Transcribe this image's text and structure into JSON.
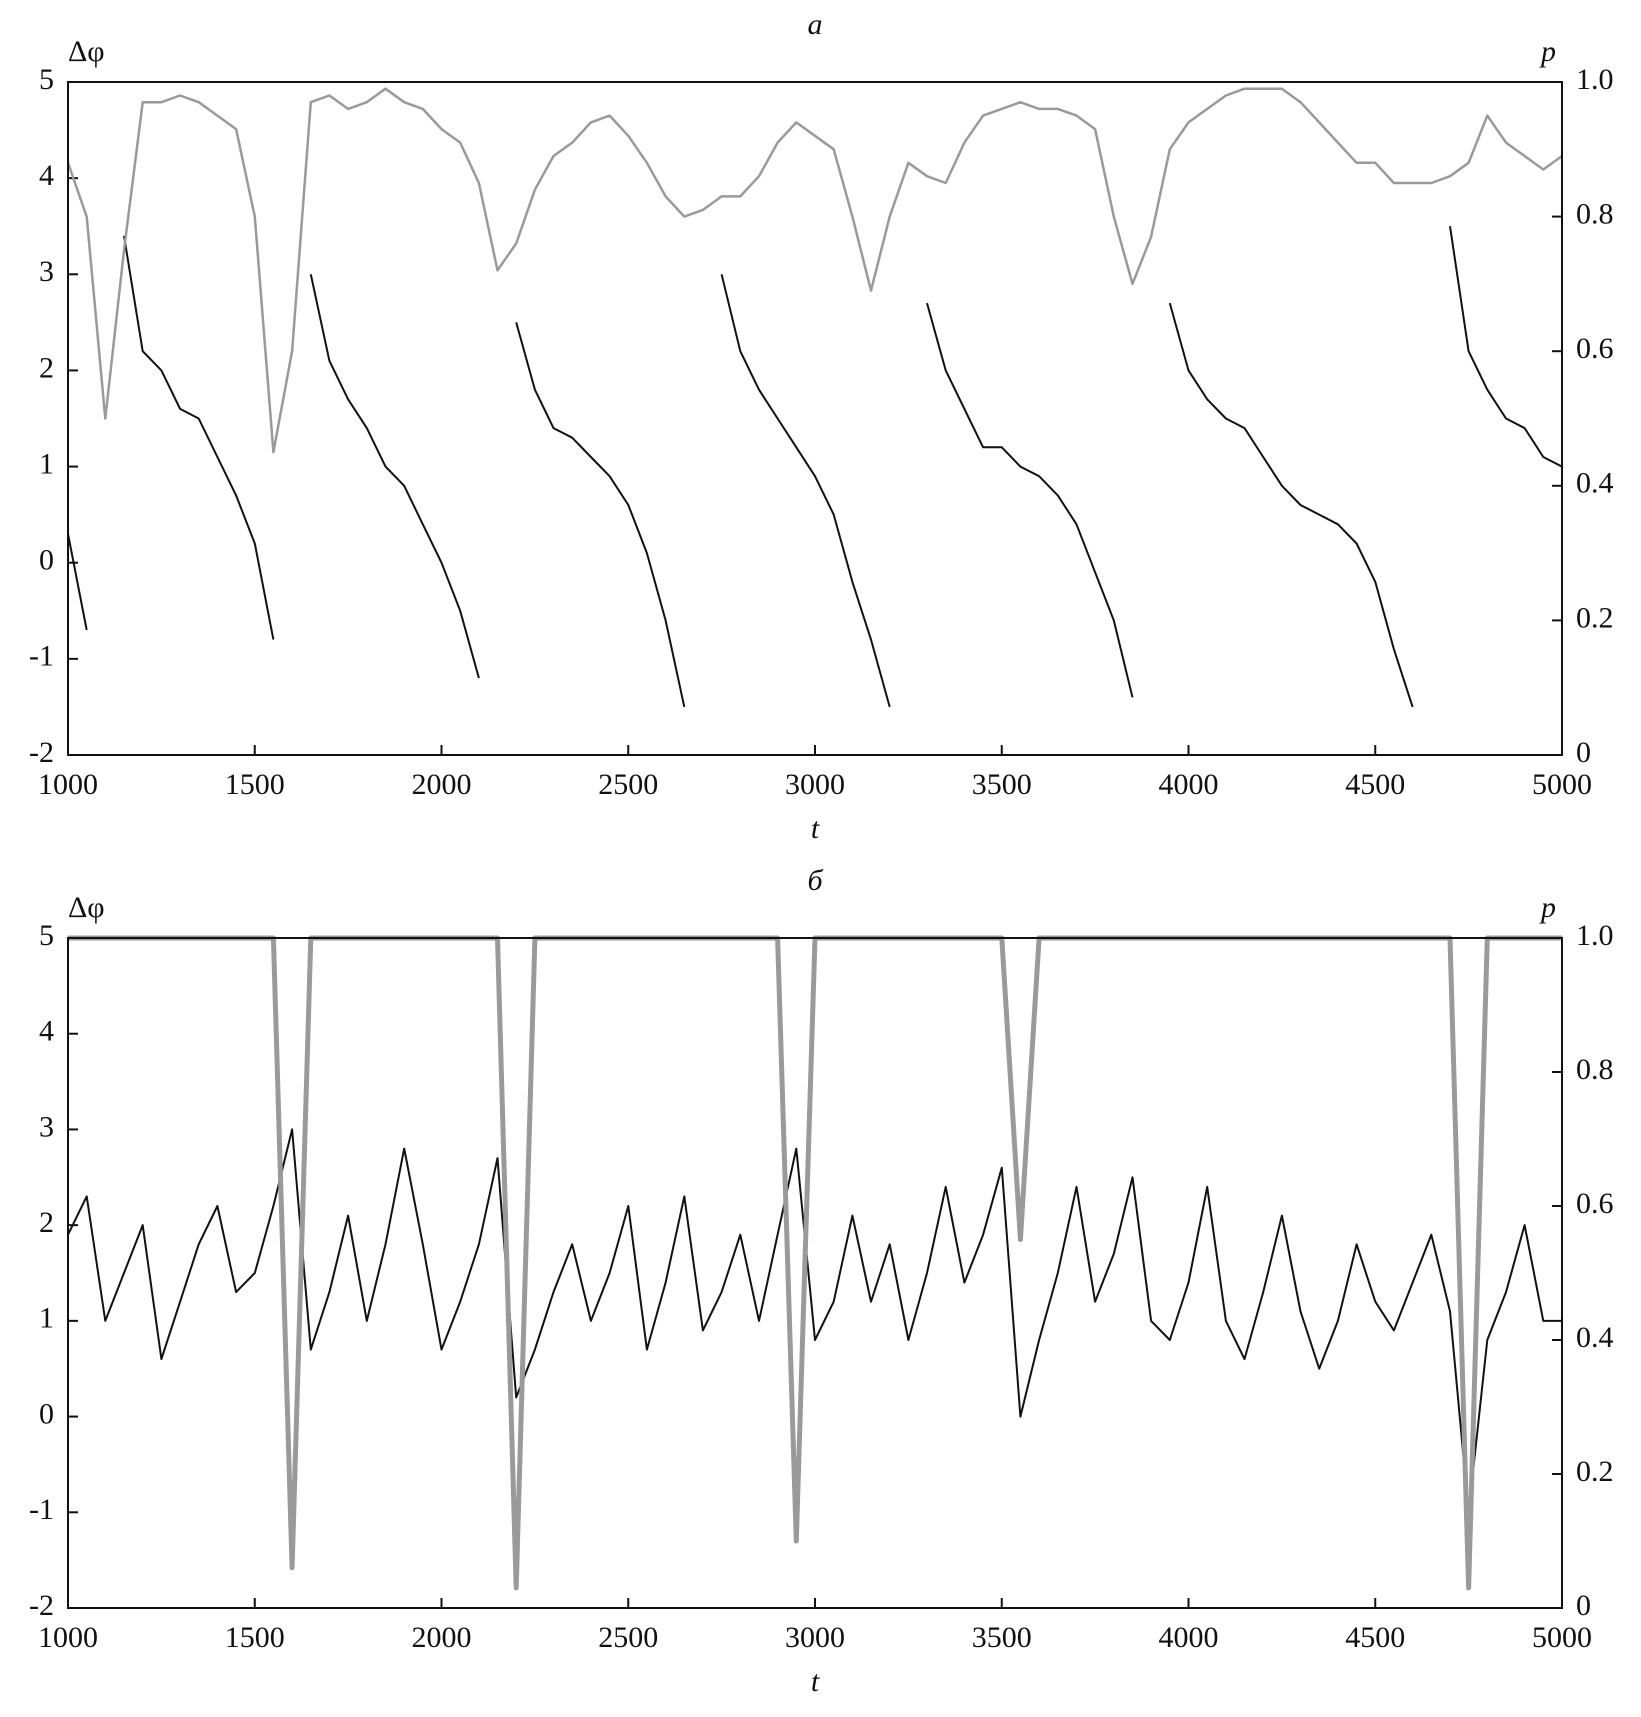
{
  "chart_data": [
    {
      "type": "line",
      "title": "a",
      "xlabel": "t",
      "ylabel": "Δφ",
      "y2label": "p",
      "xlim": [
        1000,
        5000
      ],
      "xticks": [
        1000,
        1500,
        2000,
        2500,
        3000,
        3500,
        4000,
        4500,
        5000
      ],
      "ylim": [
        -2,
        5
      ],
      "yticks": [
        -2,
        -1,
        0,
        1,
        2,
        3,
        4,
        5
      ],
      "y2lim": [
        0,
        1
      ],
      "y2ticks": [
        0,
        0.2,
        0.4,
        0.6,
        0.8,
        {
          "value": 1,
          "label": "1.0"
        }
      ],
      "x": [
        1000,
        1050,
        1100,
        1150,
        1200,
        1250,
        1300,
        1350,
        1400,
        1450,
        1500,
        1550,
        1600,
        1650,
        1700,
        1750,
        1800,
        1850,
        1900,
        1950,
        2000,
        2050,
        2100,
        2150,
        2200,
        2250,
        2300,
        2350,
        2400,
        2450,
        2500,
        2550,
        2600,
        2650,
        2700,
        2750,
        2800,
        2850,
        2900,
        2950,
        3000,
        3050,
        3100,
        3150,
        3200,
        3250,
        3300,
        3350,
        3400,
        3450,
        3500,
        3550,
        3600,
        3650,
        3700,
        3750,
        3800,
        3850,
        3900,
        3950,
        4000,
        4050,
        4100,
        4150,
        4200,
        4250,
        4300,
        4350,
        4400,
        4450,
        4500,
        4550,
        4600,
        4650,
        4700,
        4750,
        4800,
        4850,
        4900,
        4950,
        5000
      ],
      "series": [
        {
          "name": "Δφ",
          "color": "#111111",
          "values": [
            0.3,
            -0.7,
            null,
            3.4,
            2.2,
            2.0,
            1.6,
            1.5,
            1.1,
            0.7,
            0.2,
            -0.8,
            null,
            3.0,
            2.1,
            1.7,
            1.4,
            1.0,
            0.8,
            0.4,
            0.0,
            -0.5,
            -1.2,
            null,
            2.5,
            1.8,
            1.4,
            1.3,
            1.1,
            0.9,
            0.6,
            0.1,
            -0.6,
            -1.5,
            null,
            3.0,
            2.2,
            1.8,
            1.5,
            1.2,
            0.9,
            0.5,
            -0.2,
            -0.8,
            -1.5,
            null,
            2.7,
            2.0,
            1.6,
            1.2,
            1.2,
            1.0,
            0.9,
            0.7,
            0.4,
            -0.1,
            -0.6,
            -1.4,
            null,
            2.7,
            2.0,
            1.7,
            1.5,
            1.4,
            1.1,
            0.8,
            0.6,
            0.5,
            0.4,
            0.2,
            -0.2,
            -0.9,
            -1.5,
            null,
            3.5,
            2.2,
            1.8,
            1.5,
            1.4,
            1.1,
            1.0
          ]
        },
        {
          "name": "p",
          "color": "#9a9a9a",
          "axis": "y2",
          "values": [
            0.88,
            0.8,
            0.5,
            0.75,
            0.97,
            0.97,
            0.98,
            0.97,
            0.95,
            0.93,
            0.8,
            0.45,
            0.6,
            0.97,
            0.98,
            0.96,
            0.97,
            0.99,
            0.97,
            0.96,
            0.93,
            0.91,
            0.85,
            0.72,
            0.76,
            0.84,
            0.89,
            0.91,
            0.94,
            0.95,
            0.92,
            0.88,
            0.83,
            0.8,
            0.81,
            0.83,
            0.83,
            0.86,
            0.91,
            0.94,
            0.92,
            0.9,
            0.8,
            0.69,
            0.8,
            0.88,
            0.86,
            0.85,
            0.91,
            0.95,
            0.96,
            0.97,
            0.96,
            0.96,
            0.95,
            0.93,
            0.8,
            0.7,
            0.77,
            0.9,
            0.94,
            0.96,
            0.98,
            0.99,
            0.99,
            0.99,
            0.97,
            0.94,
            0.91,
            0.88,
            0.88,
            0.85,
            0.85,
            0.85,
            0.86,
            0.88,
            0.95,
            0.91,
            0.89,
            0.87,
            0.89
          ]
        }
      ]
    },
    {
      "type": "line",
      "title": "б",
      "xlabel": "t",
      "ylabel": "Δφ",
      "y2label": "p",
      "xlim": [
        1000,
        5000
      ],
      "xticks": [
        1000,
        1500,
        2000,
        2500,
        3000,
        3500,
        4000,
        4500,
        5000
      ],
      "ylim": [
        -2,
        5
      ],
      "yticks": [
        -2,
        -1,
        0,
        1,
        2,
        3,
        4,
        5
      ],
      "y2lim": [
        0,
        1
      ],
      "y2ticks": [
        0,
        0.2,
        0.4,
        0.6,
        0.8,
        {
          "value": 1,
          "label": "1.0"
        }
      ],
      "x": [
        1000,
        1050,
        1100,
        1150,
        1200,
        1250,
        1300,
        1350,
        1400,
        1450,
        1500,
        1550,
        1600,
        1650,
        1700,
        1750,
        1800,
        1850,
        1900,
        1950,
        2000,
        2050,
        2100,
        2150,
        2200,
        2250,
        2300,
        2350,
        2400,
        2450,
        2500,
        2550,
        2600,
        2650,
        2700,
        2750,
        2800,
        2850,
        2900,
        2950,
        3000,
        3050,
        3100,
        3150,
        3200,
        3250,
        3300,
        3350,
        3400,
        3450,
        3500,
        3550,
        3600,
        3650,
        3700,
        3750,
        3800,
        3850,
        3900,
        3950,
        4000,
        4050,
        4100,
        4150,
        4200,
        4250,
        4300,
        4350,
        4400,
        4450,
        4500,
        4550,
        4600,
        4650,
        4700,
        4750,
        4800,
        4850,
        4900,
        4950,
        5000
      ],
      "series": [
        {
          "name": "Δφ",
          "color": "#111111",
          "values": [
            1.9,
            2.3,
            1.0,
            1.5,
            2.0,
            0.6,
            1.2,
            1.8,
            2.2,
            1.3,
            1.5,
            2.2,
            3.0,
            0.7,
            1.3,
            2.1,
            1.0,
            1.8,
            2.8,
            1.8,
            0.7,
            1.2,
            1.8,
            2.7,
            0.2,
            0.7,
            1.3,
            1.8,
            1.0,
            1.5,
            2.2,
            0.7,
            1.4,
            2.3,
            0.9,
            1.3,
            1.9,
            1.0,
            1.9,
            2.8,
            0.8,
            1.2,
            2.1,
            1.2,
            1.8,
            0.8,
            1.5,
            2.4,
            1.4,
            1.9,
            2.6,
            0.0,
            0.8,
            1.5,
            2.4,
            1.2,
            1.7,
            2.5,
            1.0,
            0.8,
            1.4,
            2.4,
            1.0,
            0.6,
            1.3,
            2.1,
            1.1,
            0.5,
            1.0,
            1.8,
            1.2,
            0.9,
            1.4,
            1.9,
            1.1,
            -1.0,
            0.8,
            1.3,
            2.0,
            1.0,
            1.0
          ]
        },
        {
          "name": "p",
          "color": "#9a9a9a",
          "axis": "y2",
          "values": [
            1,
            1,
            1,
            1,
            1,
            1,
            1,
            1,
            1,
            1,
            1,
            1,
            0.06,
            1,
            1,
            1,
            1,
            1,
            1,
            1,
            1,
            1,
            1,
            1,
            0.03,
            1,
            1,
            1,
            1,
            1,
            1,
            1,
            1,
            1,
            1,
            1,
            1,
            1,
            1,
            0.1,
            1,
            1,
            1,
            1,
            1,
            1,
            1,
            1,
            1,
            1,
            1,
            0.55,
            1,
            1,
            1,
            1,
            1,
            1,
            1,
            1,
            1,
            1,
            1,
            1,
            1,
            1,
            1,
            1,
            1,
            1,
            1,
            1,
            1,
            1,
            1,
            0.03,
            1,
            1,
            1,
            1,
            1
          ]
        }
      ]
    }
  ]
}
